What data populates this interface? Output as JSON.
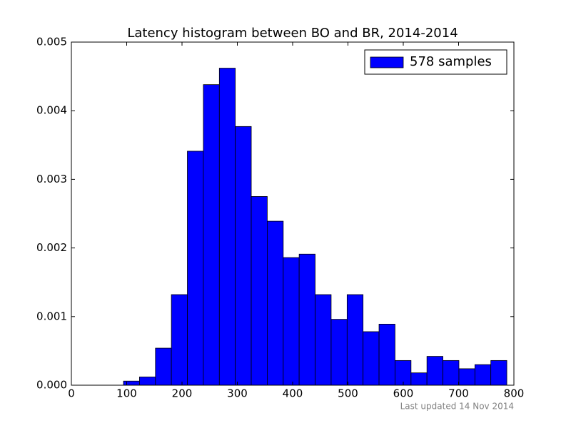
{
  "chart_data": {
    "type": "histogram",
    "title": "Latency histogram between BO and BR, 2014-2014",
    "footer": "Last updated 14 Nov 2014",
    "series": [
      {
        "name": "578 samples",
        "color": "#0000ff",
        "bins": [
          94.2,
          123.1,
          152.0,
          180.8,
          209.7,
          238.6,
          267.5,
          296.3,
          325.2,
          354.1,
          383.0,
          411.8,
          440.7,
          469.6,
          498.5,
          527.3,
          556.2,
          585.1,
          614.0,
          642.8,
          671.7,
          700.6,
          729.5,
          758.3,
          787.2
        ],
        "values": [
          6e-05,
          0.00012,
          0.00054,
          0.00132,
          0.00341,
          0.00438,
          0.00462,
          0.00377,
          0.00275,
          0.00239,
          0.00186,
          0.00191,
          0.00132,
          0.00096,
          0.00132,
          0.00078,
          0.00089,
          0.00036,
          0.00018,
          0.00042,
          0.00036,
          0.00024,
          0.0003,
          0.00036
        ]
      }
    ],
    "xlim": [
      0,
      800
    ],
    "xticks": [
      0,
      100,
      200,
      300,
      400,
      500,
      600,
      700,
      800
    ],
    "ylim": [
      0,
      0.005
    ],
    "yticks": [
      {
        "value": 0,
        "label": "0.000"
      },
      {
        "value": 0.001,
        "label": "0.001"
      },
      {
        "value": 0.002,
        "label": "0.002"
      },
      {
        "value": 0.003,
        "label": "0.003"
      },
      {
        "value": 0.004,
        "label": "0.004"
      },
      {
        "value": 0.005,
        "label": "0.005"
      }
    ],
    "legend": "upper right"
  }
}
